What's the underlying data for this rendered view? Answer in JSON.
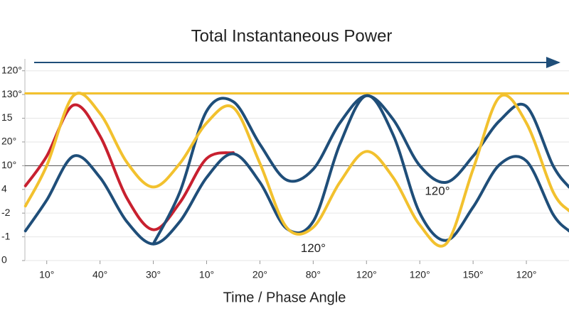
{
  "chart_data": {
    "type": "line",
    "title": "Total Instantaneous Power",
    "x_label": "Time / Phase Angle",
    "x": [
      -0.4,
      0,
      0.5,
      1,
      1.5,
      2,
      2.5,
      3,
      3.5,
      4,
      4.5,
      5,
      5.5,
      6,
      6.5,
      7,
      7.5,
      8,
      8.5,
      9,
      9.5,
      9.8
    ],
    "xlim": [
      -0.41,
      9.8
    ],
    "xticks": [
      {
        "value": 0,
        "label": "10°"
      },
      {
        "value": 1,
        "label": "40°"
      },
      {
        "value": 2,
        "label": "30°"
      },
      {
        "value": 3,
        "label": "10°"
      },
      {
        "value": 4,
        "label": "20°"
      },
      {
        "value": 5,
        "label": "80°"
      },
      {
        "value": 6,
        "label": "120°"
      },
      {
        "value": 7,
        "label": "120°"
      },
      {
        "value": 8,
        "label": "150°"
      },
      {
        "value": 9,
        "label": "120°"
      }
    ],
    "ylim": [
      0,
      8.5
    ],
    "yticks": [
      0,
      {
        "value": 1,
        "label": "-1"
      },
      {
        "value": 2,
        "label": "-2"
      },
      {
        "value": 3,
        "label": "4"
      },
      {
        "value": 4,
        "label": "10°"
      },
      {
        "value": 5,
        "label": "20°"
      },
      {
        "value": 6,
        "label": "15"
      },
      {
        "value": 7,
        "label": "130°"
      },
      {
        "value": 8,
        "label": "120°"
      }
    ],
    "reference_line": 4,
    "series": [
      {
        "color": "#f2c12e",
        "width": 3,
        "values": [
          7.05,
          7.05,
          7.05,
          7.05,
          7.05,
          7.05,
          7.05,
          7.05,
          7.05,
          7.05,
          7.05,
          7.05,
          7.05,
          7.05,
          7.05,
          7.05,
          7.05,
          7.05,
          7.05,
          7.05,
          7.05,
          7.05
        ]
      },
      {
        "color": "#c8202f",
        "width": 4,
        "values": [
          3.15,
          4.4,
          6.55,
          5.25,
          2.65,
          1.3,
          2.45,
          4.3,
          4.55,
          null,
          null,
          null,
          null,
          null,
          null,
          null,
          null,
          null,
          null,
          null,
          null,
          null
        ]
      },
      {
        "color": "#1f4e79",
        "width": 4,
        "values": [
          1.25,
          2.55,
          4.4,
          3.5,
          1.65,
          0.7,
          1.65,
          3.5,
          4.5,
          3.3,
          1.35,
          1.65,
          4.9,
          6.95,
          5.3,
          2.0,
          0.85,
          2.25,
          4.05,
          4.2,
          1.95,
          1.25
        ]
      },
      {
        "color": "#1f4e79",
        "width": 4,
        "values": [
          null,
          null,
          null,
          null,
          null,
          0.7,
          2.9,
          6.3,
          6.7,
          4.9,
          3.4,
          3.85,
          5.8,
          6.95,
          5.95,
          4.0,
          3.3,
          4.4,
          5.9,
          6.5,
          4.0,
          3.1
        ]
      },
      {
        "color": "#f2c12e",
        "width": 4,
        "values": [
          2.3,
          4.0,
          6.95,
          6.2,
          4.15,
          3.1,
          4.1,
          5.8,
          6.45,
          4.1,
          1.4,
          1.4,
          3.3,
          4.6,
          3.5,
          1.5,
          0.72,
          3.85,
          6.9,
          5.8,
          2.9,
          2.1
        ]
      }
    ],
    "annotations": [
      {
        "text": "120°",
        "x": 5.0,
        "y": 0.5
      },
      {
        "text": "120°",
        "x": 7.33,
        "y": 2.9
      }
    ]
  }
}
